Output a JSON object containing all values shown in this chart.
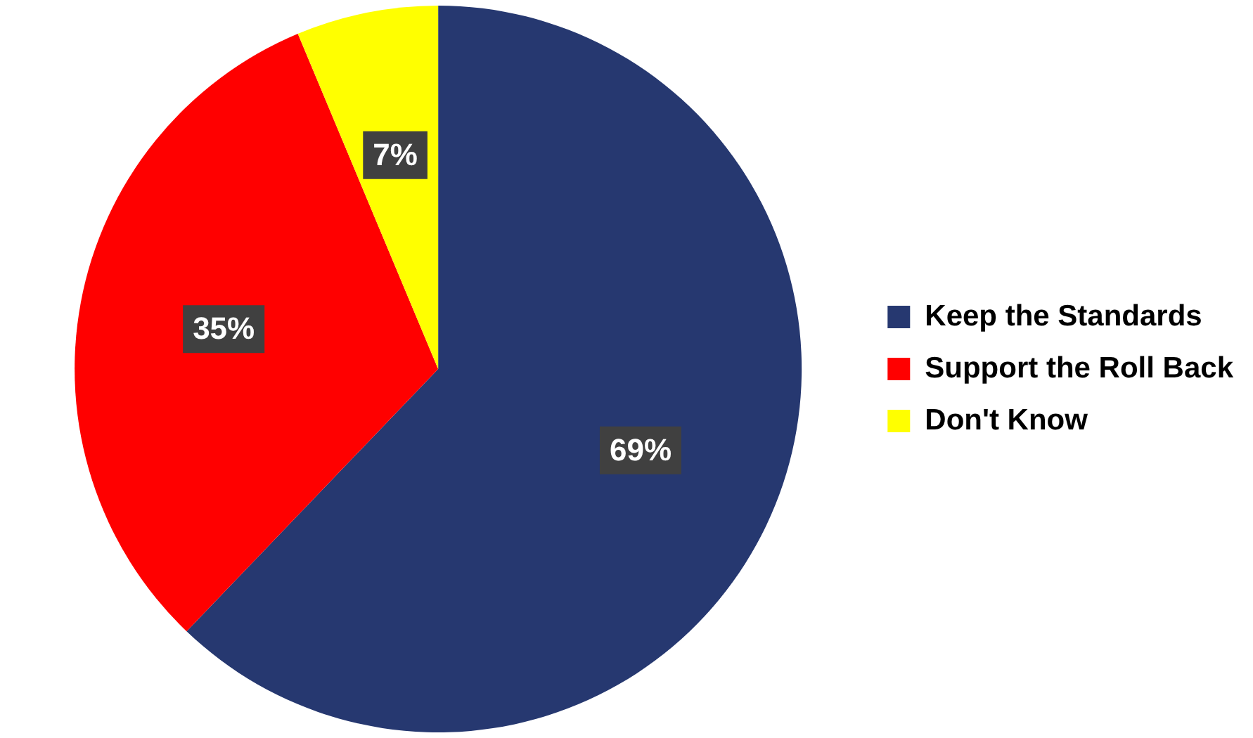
{
  "chart_data": {
    "type": "pie",
    "categories": [
      "Keep the Standards",
      "Support the Roll Back",
      "Don't Know"
    ],
    "values": [
      69,
      35,
      7
    ],
    "colors": [
      "#263870",
      "#ff0000",
      "#ffff00"
    ],
    "value_labels": [
      "69%",
      "35%",
      "7%"
    ],
    "legend": "right"
  }
}
